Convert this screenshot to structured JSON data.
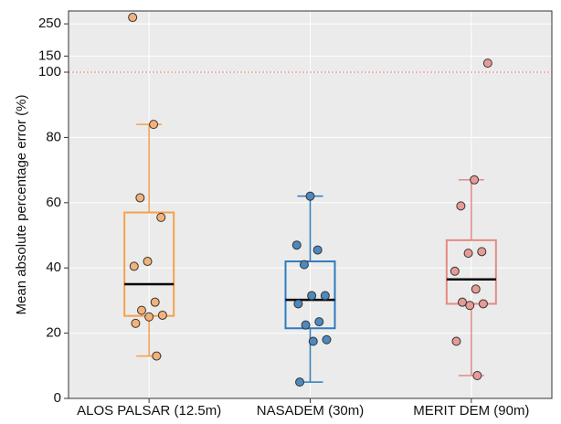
{
  "chart_data": {
    "type": "box",
    "y_label": "Mean absolute percentage error (%)",
    "categories": [
      "ALOS PALSAR (12.5m)",
      "NASADEM (30m)",
      "MERIT DEM (90m)"
    ],
    "boxes": [
      {
        "color": "#f5a14b",
        "point_color": "#f4b27a",
        "whisker_low": 13,
        "q1": 25.3,
        "median": 35,
        "q3": 57,
        "whisker_high": 84,
        "points": [
          270,
          84,
          61.5,
          55.5,
          42,
          40.5,
          29.5,
          27,
          25.5,
          25,
          23,
          13
        ]
      },
      {
        "color": "#2f7bbf",
        "point_color": "#4d89c0",
        "whisker_low": 5,
        "q1": 21.5,
        "median": 30.2,
        "q3": 42,
        "whisker_high": 62,
        "points": [
          62,
          47,
          45.5,
          41,
          31.5,
          31.5,
          29,
          23.5,
          22.5,
          18,
          17.5,
          5
        ]
      },
      {
        "color": "#e58a85",
        "point_color": "#e69b96",
        "whisker_low": 7,
        "q1": 29,
        "median": 36.5,
        "q3": 48.5,
        "whisker_high": 67,
        "points": [
          128,
          67,
          59,
          45,
          44.5,
          39,
          33.5,
          29.5,
          29,
          28.5,
          17.5,
          7
        ]
      }
    ],
    "ylim": [
      0,
      290
    ],
    "yticks": [
      0,
      20,
      40,
      60,
      80,
      100,
      150,
      250
    ],
    "scale_break": 100,
    "reference_line": 100,
    "reference_color": "#f08080",
    "grid": true
  }
}
